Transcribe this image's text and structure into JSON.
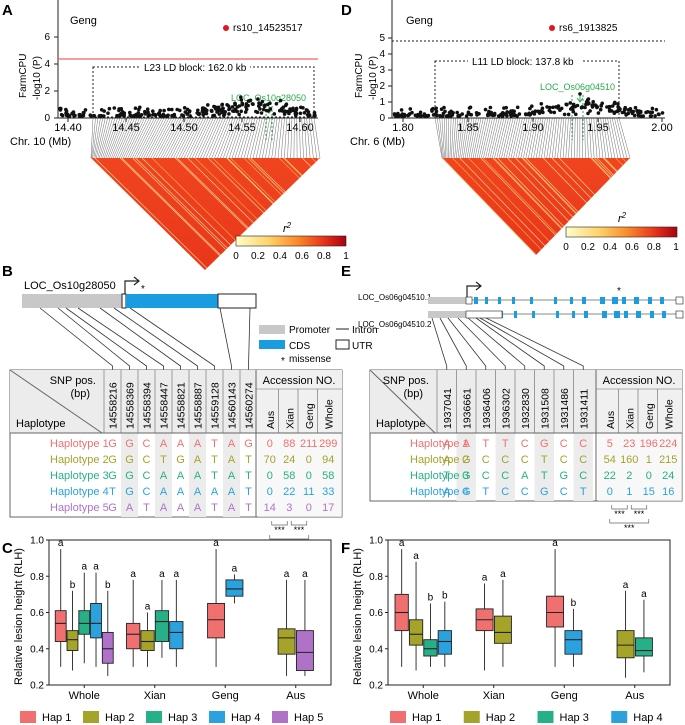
{
  "panel_labels": {
    "a": "A",
    "b": "B",
    "c": "C",
    "d": "D",
    "e": "E",
    "f": "F"
  },
  "colors": {
    "hap1": "#f07070",
    "hap2": "#a5a32a",
    "hap3": "#27b087",
    "hap4": "#2ba2de",
    "hap5": "#b072c8",
    "cds": "#1a9de0",
    "promoter": "#c8c8c8",
    "sig_line_a": "#f06565",
    "green": "#2aa84a",
    "lead_snp": "#e0181d"
  },
  "panel_a": {
    "group_label": "Geng",
    "lead_snp": "rs10_14523517",
    "ylabel_top": "FarmCPU",
    "ylabel_bottom": "-log10 (P)",
    "yticks": [
      "0",
      "2",
      "4",
      "6"
    ],
    "xticks": [
      "14.40",
      "14.45",
      "14.50",
      "14.55",
      "14.60"
    ],
    "xlabel": "Chr. 10 (Mb)",
    "ld_block_label": "L23 LD block: 162.0 kb",
    "gene_label": "LOC_Os10g28050"
  },
  "panel_d": {
    "group_label": "Geng",
    "lead_snp": "rs6_1913825",
    "ylabel_top": "FarmCPU",
    "ylabel_bottom": "-log10 (P)",
    "yticks": [
      "0",
      "1",
      "2",
      "3",
      "4",
      "5"
    ],
    "xticks": [
      "1.80",
      "1.85",
      "1.90",
      "1.95",
      "2.00"
    ],
    "xlabel": "Chr. 6 (Mb)",
    "ld_block_label": "L11 LD block: 137.8 kb",
    "gene_label": "LOC_Os06g04510"
  },
  "r2_legend": {
    "label": "r2",
    "ticks": [
      "0",
      "0.2",
      "0.4",
      "0.6",
      "0.8",
      "1"
    ]
  },
  "panel_b": {
    "gene": "LOC_Os10g28050",
    "legend": {
      "promoter": "Promoter",
      "intron": "Intron",
      "cds": "CDS",
      "utr": "UTR",
      "missense": "missense"
    },
    "snp_header": "SNP pos. (bp)",
    "hap_header": "Haplotype",
    "acc_header": "Accession NO.",
    "snps": [
      "14558216",
      "14558369",
      "14558394",
      "14558447",
      "14558821",
      "14558887",
      "14559128",
      "14560143",
      "14560274"
    ],
    "acc_cols": [
      "Aus",
      "Xian",
      "Geng",
      "Whole"
    ],
    "rows": [
      {
        "name": "Haplotype 1",
        "alleles": [
          "G",
          "G",
          "C",
          "A",
          "A",
          "A",
          "T",
          "A",
          "G"
        ],
        "acc": [
          "0",
          "88",
          "211",
          "299"
        ]
      },
      {
        "name": "Haplotype 2",
        "alleles": [
          "G",
          "G",
          "C",
          "T",
          "G",
          "A",
          "T",
          "A",
          "T"
        ],
        "acc": [
          "70",
          "24",
          "0",
          "94"
        ]
      },
      {
        "name": "Haplotype 3",
        "alleles": [
          "G",
          "G",
          "C",
          "A",
          "A",
          "A",
          "T",
          "A",
          "T"
        ],
        "acc": [
          "0",
          "58",
          "0",
          "58"
        ]
      },
      {
        "name": "Haplotype 4",
        "alleles": [
          "T",
          "G",
          "C",
          "A",
          "A",
          "A",
          "A",
          "A",
          "T"
        ],
        "acc": [
          "0",
          "22",
          "11",
          "33"
        ]
      },
      {
        "name": "Haplotype 5",
        "alleles": [
          "G",
          "A",
          "T",
          "A",
          "A",
          "A",
          "T",
          "A",
          "T"
        ],
        "acc": [
          "14",
          "3",
          "0",
          "17"
        ]
      }
    ],
    "sig": [
      "***",
      "***",
      "***"
    ]
  },
  "panel_e": {
    "gene1": "LOC_Os06g04510.1",
    "gene2": "LOC_Os06g04510.2",
    "snp_header": "SNP pos. (bp)",
    "hap_header": "Haplotype",
    "acc_header": "Accession NO.",
    "snps": [
      "1937041",
      "1936661",
      "1936406",
      "1936302",
      "1932830",
      "1931508",
      "1931486",
      "1931411"
    ],
    "acc_cols": [
      "Aus",
      "Xian",
      "Geng",
      "Whole"
    ],
    "rows": [
      {
        "name": "Haplotype 1",
        "alleles": [
          "A",
          "A",
          "T",
          "T",
          "C",
          "G",
          "C",
          "C"
        ],
        "acc": [
          "5",
          "23",
          "196",
          "224"
        ]
      },
      {
        "name": "Haplotype 2",
        "alleles": [
          "A",
          "G",
          "C",
          "C",
          "C",
          "T",
          "C",
          "C"
        ],
        "acc": [
          "54",
          "160",
          "1",
          "215"
        ]
      },
      {
        "name": "Haplotype 3",
        "alleles": [
          "T",
          "G",
          "C",
          "C",
          "A",
          "T",
          "G",
          "C"
        ],
        "acc": [
          "22",
          "2",
          "0",
          "24"
        ]
      },
      {
        "name": "Haplotype 4",
        "alleles": [
          "A",
          "G",
          "T",
          "C",
          "C",
          "G",
          "C",
          "T"
        ],
        "acc": [
          "0",
          "1",
          "15",
          "16"
        ]
      }
    ],
    "sig": [
      "***",
      "***",
      "***"
    ]
  },
  "chart_data": [
    {
      "type": "box",
      "panel": "C",
      "ylabel": "Relative lesion height (RLH)",
      "ylim": [
        0.2,
        1.0
      ],
      "yticks": [
        "0.2",
        "0.4",
        "0.6",
        "0.8",
        "1.0"
      ],
      "groups": [
        "Whole",
        "Xian",
        "Geng",
        "Aus"
      ],
      "legend": [
        "Hap 1",
        "Hap 2",
        "Hap 3",
        "Hap 4",
        "Hap 5"
      ],
      "boxes": [
        {
          "group": "Whole",
          "hap": 1,
          "min": 0.3,
          "q1": 0.44,
          "med": 0.54,
          "q3": 0.61,
          "max": 0.95,
          "letter": "a"
        },
        {
          "group": "Whole",
          "hap": 2,
          "min": 0.28,
          "q1": 0.39,
          "med": 0.45,
          "q3": 0.5,
          "max": 0.72,
          "letter": "b"
        },
        {
          "group": "Whole",
          "hap": 3,
          "min": 0.32,
          "q1": 0.48,
          "med": 0.54,
          "q3": 0.61,
          "max": 0.82,
          "letter": "a"
        },
        {
          "group": "Whole",
          "hap": 4,
          "min": 0.3,
          "q1": 0.46,
          "med": 0.54,
          "q3": 0.65,
          "max": 0.82,
          "letter": "a"
        },
        {
          "group": "Whole",
          "hap": 5,
          "min": 0.25,
          "q1": 0.32,
          "med": 0.4,
          "q3": 0.49,
          "max": 0.72,
          "letter": "b"
        },
        {
          "group": "Xian",
          "hap": 1,
          "min": 0.3,
          "q1": 0.4,
          "med": 0.48,
          "q3": 0.54,
          "max": 0.78,
          "letter": "a"
        },
        {
          "group": "Xian",
          "hap": 2,
          "min": 0.3,
          "q1": 0.39,
          "med": 0.44,
          "q3": 0.5,
          "max": 0.6,
          "letter": "a"
        },
        {
          "group": "Xian",
          "hap": 3,
          "min": 0.35,
          "q1": 0.44,
          "med": 0.55,
          "q3": 0.61,
          "max": 0.78,
          "letter": "a"
        },
        {
          "group": "Xian",
          "hap": 4,
          "min": 0.3,
          "q1": 0.4,
          "med": 0.49,
          "q3": 0.55,
          "max": 0.78,
          "letter": "a"
        },
        {
          "group": "Geng",
          "hap": 1,
          "min": 0.3,
          "q1": 0.46,
          "med": 0.56,
          "q3": 0.65,
          "max": 0.95,
          "letter": "a"
        },
        {
          "group": "Geng",
          "hap": 4,
          "min": 0.65,
          "q1": 0.69,
          "med": 0.73,
          "q3": 0.78,
          "max": 0.81,
          "letter": "a"
        },
        {
          "group": "Aus",
          "hap": 2,
          "min": 0.25,
          "q1": 0.37,
          "med": 0.46,
          "q3": 0.51,
          "max": 0.78,
          "letter": "a"
        },
        {
          "group": "Aus",
          "hap": 5,
          "min": 0.25,
          "q1": 0.28,
          "med": 0.38,
          "q3": 0.5,
          "max": 0.78,
          "letter": "a"
        }
      ]
    },
    {
      "type": "box",
      "panel": "F",
      "ylabel": "Relative lesion height (RLH)",
      "ylim": [
        0.2,
        1.0
      ],
      "yticks": [
        "0.2",
        "0.4",
        "0.6",
        "0.8",
        "1.0"
      ],
      "groups": [
        "Whole",
        "Xian",
        "Geng",
        "Aus"
      ],
      "legend": [
        "Hap 1",
        "Hap 2",
        "Hap 3",
        "Hap 4"
      ],
      "boxes": [
        {
          "group": "Whole",
          "hap": 1,
          "min": 0.3,
          "q1": 0.5,
          "med": 0.6,
          "q3": 0.7,
          "max": 0.95,
          "letter": "a"
        },
        {
          "group": "Whole",
          "hap": 2,
          "min": 0.28,
          "q1": 0.42,
          "med": 0.48,
          "q3": 0.56,
          "max": 0.88,
          "letter": "a"
        },
        {
          "group": "Whole",
          "hap": 3,
          "min": 0.3,
          "q1": 0.36,
          "med": 0.4,
          "q3": 0.45,
          "max": 0.65,
          "letter": "b"
        },
        {
          "group": "Whole",
          "hap": 4,
          "min": 0.3,
          "q1": 0.37,
          "med": 0.44,
          "q3": 0.5,
          "max": 0.66,
          "letter": "b"
        },
        {
          "group": "Xian",
          "hap": 1,
          "min": 0.28,
          "q1": 0.5,
          "med": 0.56,
          "q3": 0.62,
          "max": 0.76,
          "letter": "a"
        },
        {
          "group": "Xian",
          "hap": 2,
          "min": 0.3,
          "q1": 0.43,
          "med": 0.49,
          "q3": 0.58,
          "max": 0.78,
          "letter": "a"
        },
        {
          "group": "Geng",
          "hap": 1,
          "min": 0.3,
          "q1": 0.52,
          "med": 0.6,
          "q3": 0.69,
          "max": 0.95,
          "letter": "a"
        },
        {
          "group": "Geng",
          "hap": 4,
          "min": 0.3,
          "q1": 0.37,
          "med": 0.45,
          "q3": 0.5,
          "max": 0.62,
          "letter": "b"
        },
        {
          "group": "Aus",
          "hap": 2,
          "min": 0.24,
          "q1": 0.35,
          "med": 0.42,
          "q3": 0.5,
          "max": 0.72,
          "letter": "a"
        },
        {
          "group": "Aus",
          "hap": 3,
          "min": 0.27,
          "q1": 0.36,
          "med": 0.39,
          "q3": 0.46,
          "max": 0.67,
          "letter": "a"
        }
      ]
    }
  ]
}
